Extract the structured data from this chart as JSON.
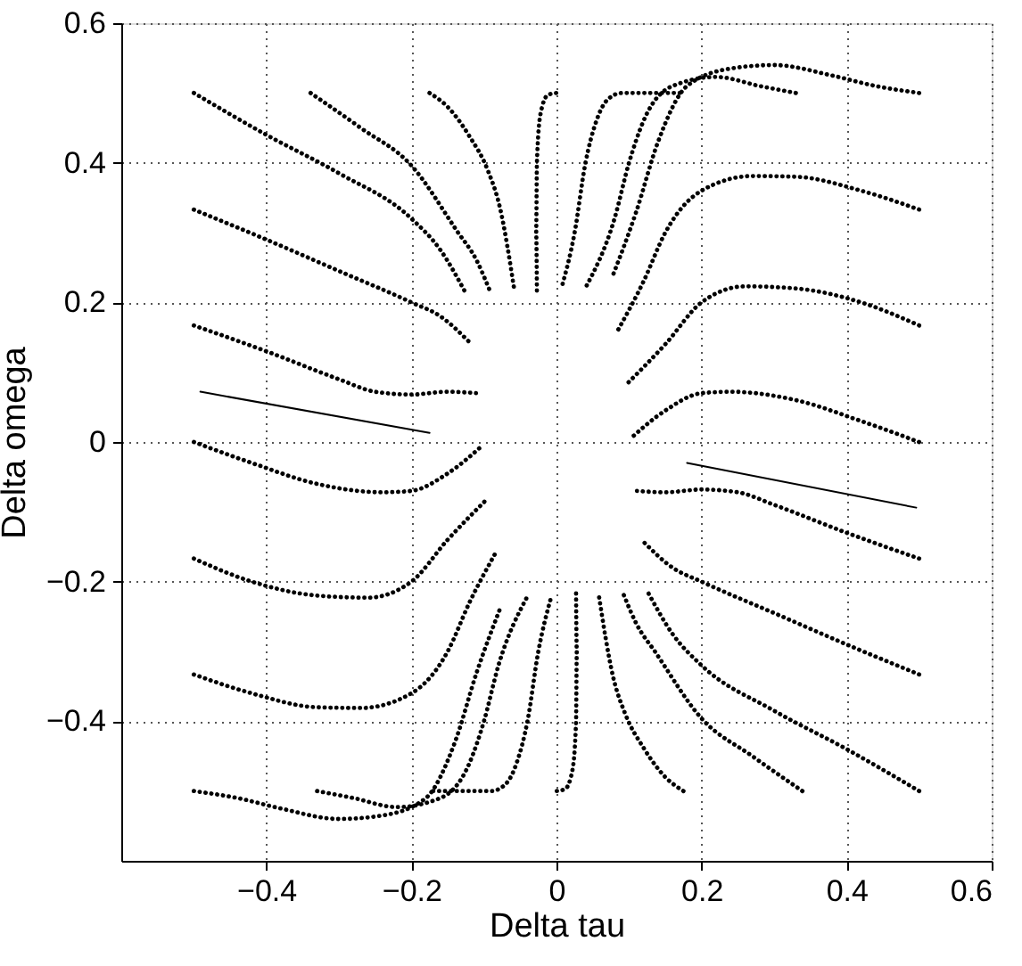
{
  "chart_data": {
    "type": "line",
    "xlabel": "Delta tau",
    "ylabel": "Delta omega",
    "xlim": [
      -0.6,
      0.6
    ],
    "ylim": [
      -0.6,
      0.6
    ],
    "xticks": [
      -0.4,
      -0.2,
      0,
      0.2,
      0.4,
      0.6
    ],
    "yticks": [
      -0.4,
      -0.2,
      0,
      0.2,
      0.4,
      0.6
    ],
    "grid": true,
    "line_style": "dotted",
    "series": [
      {
        "color": "#000000",
        "x": [
          -0.5,
          -0.4,
          -0.3,
          -0.2,
          -0.16,
          -0.127
        ],
        "values": [
          0.5,
          0.44,
          0.385,
          0.32,
          0.275,
          0.217
        ]
      },
      {
        "color": "#000000",
        "x": [
          -0.339,
          -0.27,
          -0.2,
          -0.137,
          -0.11,
          -0.092
        ],
        "values": [
          0.5,
          0.45,
          0.396,
          0.302,
          0.26,
          0.217
        ]
      },
      {
        "color": "#000000",
        "x": [
          -0.175,
          -0.15,
          -0.12,
          -0.095,
          -0.078,
          -0.058
        ],
        "values": [
          0.5,
          0.48,
          0.438,
          0.39,
          0.336,
          0.217
        ]
      },
      {
        "color": "#000000",
        "x": [
          -0.027,
          -0.028,
          -0.027,
          -0.022,
          -0.012,
          0
        ],
        "values": [
          0.217,
          0.3,
          0.4,
          0.47,
          0.497,
          0.5
        ]
      },
      {
        "color": "#000000",
        "x": [
          0.17,
          0.12,
          0.09,
          0.07,
          0.055,
          0.04,
          0.025,
          0.007
        ],
        "values": [
          0.5,
          0.5,
          0.5,
          0.49,
          0.46,
          0.4,
          0.3,
          0.221
        ]
      },
      {
        "color": "#000000",
        "x": [
          0.33,
          0.28,
          0.22,
          0.16,
          0.12,
          0.1,
          0.08,
          0.04
        ],
        "values": [
          0.5,
          0.51,
          0.523,
          0.51,
          0.46,
          0.4,
          0.32,
          0.221
        ]
      },
      {
        "color": "#000000",
        "x": [
          0.5,
          0.44,
          0.38,
          0.3,
          0.24,
          0.18,
          0.14,
          0.11,
          0.076
        ],
        "values": [
          0.5,
          0.51,
          0.525,
          0.54,
          0.535,
          0.51,
          0.43,
          0.33,
          0.234
        ]
      },
      {
        "color": "#000000",
        "x": [
          0.5,
          0.42,
          0.33,
          0.27,
          0.2,
          0.15,
          0.12,
          0.083
        ],
        "values": [
          0.333,
          0.36,
          0.38,
          0.381,
          0.36,
          0.3,
          0.23,
          0.157
        ]
      },
      {
        "color": "#000000",
        "x": [
          0.5,
          0.42,
          0.33,
          0.26,
          0.2,
          0.15,
          0.095
        ],
        "values": [
          0.167,
          0.2,
          0.22,
          0.223,
          0.2,
          0.14,
          0.081
        ]
      },
      {
        "color": "#000000",
        "x": [
          0.5,
          0.42,
          0.33,
          0.24,
          0.2,
          0.15,
          0.101
        ],
        "values": [
          0,
          0.03,
          0.06,
          0.072,
          0.07,
          0.045,
          0.004
        ]
      },
      {
        "color": "#000000",
        "x": [
          -0.5,
          -0.4,
          -0.3,
          -0.2,
          -0.16,
          -0.12
        ],
        "values": [
          0.333,
          0.29,
          0.245,
          0.2,
          0.18,
          0.143
        ]
      },
      {
        "color": "#000000",
        "x": [
          -0.5,
          -0.4,
          -0.3,
          -0.25,
          -0.2,
          -0.15,
          -0.111
        ],
        "values": [
          0.167,
          0.13,
          0.09,
          0.072,
          0.068,
          0.072,
          0.07
        ]
      },
      {
        "color": "#000000",
        "x": [
          0.5,
          0.4,
          0.3,
          0.2,
          0.16,
          0.127
        ],
        "values": [
          -0.5,
          -0.44,
          -0.385,
          -0.32,
          -0.275,
          -0.217
        ]
      },
      {
        "color": "#000000",
        "x": [
          0.339,
          0.27,
          0.2,
          0.137,
          0.11,
          0.092
        ],
        "values": [
          -0.5,
          -0.45,
          -0.396,
          -0.302,
          -0.26,
          -0.217
        ]
      },
      {
        "color": "#000000",
        "x": [
          0.175,
          0.15,
          0.12,
          0.095,
          0.078,
          0.058
        ],
        "values": [
          -0.5,
          -0.48,
          -0.438,
          -0.39,
          -0.336,
          -0.217
        ]
      },
      {
        "color": "#000000",
        "x": [
          0.027,
          0.028,
          0.027,
          0.022,
          0.012,
          0
        ],
        "values": [
          -0.217,
          -0.3,
          -0.4,
          -0.47,
          -0.497,
          -0.5
        ]
      },
      {
        "color": "#000000",
        "x": [
          -0.17,
          -0.12,
          -0.09,
          -0.07,
          -0.055,
          -0.04,
          -0.025,
          -0.007
        ],
        "values": [
          -0.5,
          -0.5,
          -0.5,
          -0.49,
          -0.46,
          -0.4,
          -0.3,
          -0.221
        ]
      },
      {
        "color": "#000000",
        "x": [
          -0.33,
          -0.28,
          -0.22,
          -0.16,
          -0.12,
          -0.1,
          -0.08,
          -0.04
        ],
        "values": [
          -0.5,
          -0.51,
          -0.523,
          -0.51,
          -0.46,
          -0.4,
          -0.32,
          -0.221
        ]
      },
      {
        "color": "#000000",
        "x": [
          -0.5,
          -0.44,
          -0.38,
          -0.3,
          -0.24,
          -0.18,
          -0.14,
          -0.11,
          -0.076
        ],
        "values": [
          -0.5,
          -0.51,
          -0.525,
          -0.54,
          -0.535,
          -0.51,
          -0.43,
          -0.33,
          -0.234
        ]
      },
      {
        "color": "#000000",
        "x": [
          -0.5,
          -0.42,
          -0.33,
          -0.27,
          -0.2,
          -0.15,
          -0.12,
          -0.083
        ],
        "values": [
          -0.333,
          -0.36,
          -0.38,
          -0.381,
          -0.36,
          -0.3,
          -0.23,
          -0.157
        ]
      },
      {
        "color": "#000000",
        "x": [
          -0.5,
          -0.42,
          -0.33,
          -0.26,
          -0.2,
          -0.15,
          -0.095
        ],
        "values": [
          -0.167,
          -0.2,
          -0.22,
          -0.223,
          -0.2,
          -0.14,
          -0.081
        ]
      },
      {
        "color": "#000000",
        "x": [
          -0.5,
          -0.42,
          -0.33,
          -0.24,
          -0.2,
          -0.15,
          -0.101
        ],
        "values": [
          0,
          -0.03,
          -0.06,
          -0.072,
          -0.07,
          -0.045,
          -0.004
        ]
      },
      {
        "color": "#000000",
        "x": [
          0.5,
          0.4,
          0.3,
          0.2,
          0.16,
          0.12
        ],
        "values": [
          -0.333,
          -0.29,
          -0.245,
          -0.2,
          -0.18,
          -0.143
        ]
      },
      {
        "color": "#000000",
        "x": [
          0.5,
          0.4,
          0.3,
          0.25,
          0.2,
          0.15,
          0.111
        ],
        "values": [
          -0.167,
          -0.13,
          -0.09,
          -0.072,
          -0.068,
          -0.072,
          -0.07
        ]
      },
      {
        "color": "#000000",
        "line_style": "solid",
        "x": [
          -0.491,
          -0.175
        ],
        "values": [
          0.072,
          0.013
        ]
      },
      {
        "color": "#000000",
        "line_style": "solid",
        "x": [
          0.496,
          0.18
        ],
        "values": [
          -0.094,
          -0.03
        ]
      }
    ]
  }
}
